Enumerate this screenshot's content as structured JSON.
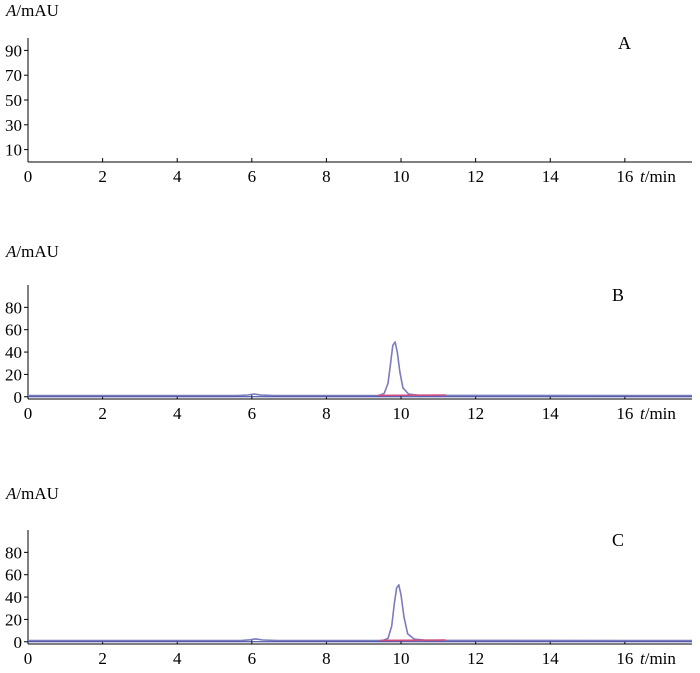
{
  "chart_data": [
    {
      "type": "line",
      "panel_label": "A",
      "ylabel": {
        "var": "A",
        "unit": "/mAU"
      },
      "xlabel": {
        "var": "t",
        "unit": "/min"
      },
      "xlim": [
        0,
        17.8
      ],
      "xticks": [
        0,
        2,
        4,
        6,
        8,
        10,
        12,
        14,
        16
      ],
      "ylim": [
        0,
        100
      ],
      "yticks": [
        10,
        30,
        50,
        70,
        90
      ],
      "grid": false,
      "series": []
    },
    {
      "type": "line",
      "panel_label": "B",
      "ylabel": {
        "var": "A",
        "unit": "/mAU"
      },
      "xlabel": {
        "var": "t",
        "unit": "/min"
      },
      "xlim": [
        0,
        17.8
      ],
      "xticks": [
        0,
        2,
        4,
        6,
        8,
        10,
        12,
        14,
        16
      ],
      "ylim": [
        -2,
        100
      ],
      "yticks": [
        0,
        20,
        40,
        60,
        80
      ],
      "grid": false,
      "baseline_color": "#2b3399",
      "series": [
        {
          "color": "#7b7bbf",
          "x": [
            0,
            5.6,
            5.9,
            6.05,
            6.25,
            6.6,
            9.4,
            9.55,
            9.65,
            9.72,
            9.78,
            9.84,
            9.9,
            9.97,
            10.05,
            10.2,
            10.5,
            17.8
          ],
          "y": [
            1,
            1,
            1.6,
            2.5,
            1.5,
            1,
            1,
            3,
            12,
            30,
            46,
            49,
            40,
            22,
            8,
            2.5,
            1.2,
            1
          ]
        },
        {
          "color": "#d04a7a",
          "x": [
            9.38,
            11.2
          ],
          "y": [
            1.2,
            1.6
          ]
        }
      ]
    },
    {
      "type": "line",
      "panel_label": "C",
      "ylabel": {
        "var": "A",
        "unit": "/mAU"
      },
      "xlabel": {
        "var": "t",
        "unit": "/min"
      },
      "xlim": [
        0,
        17.8
      ],
      "xticks": [
        0,
        2,
        4,
        6,
        8,
        10,
        12,
        14,
        16
      ],
      "ylim": [
        -2,
        100
      ],
      "yticks": [
        0,
        20,
        40,
        60,
        80
      ],
      "grid": false,
      "baseline_color": "#2b3399",
      "series": [
        {
          "color": "#7b7bbf",
          "x": [
            0,
            5.7,
            5.95,
            6.1,
            6.3,
            6.7,
            9.5,
            9.65,
            9.75,
            9.82,
            9.88,
            9.94,
            10.0,
            10.08,
            10.18,
            10.35,
            10.7,
            17.8
          ],
          "y": [
            1,
            1,
            1.8,
            2.6,
            1.6,
            1,
            1,
            3,
            14,
            34,
            48,
            51,
            42,
            22,
            7,
            2.5,
            1.2,
            1
          ]
        },
        {
          "color": "#d04a7a",
          "x": [
            9.45,
            11.2
          ],
          "y": [
            1.2,
            1.6
          ]
        }
      ]
    }
  ]
}
